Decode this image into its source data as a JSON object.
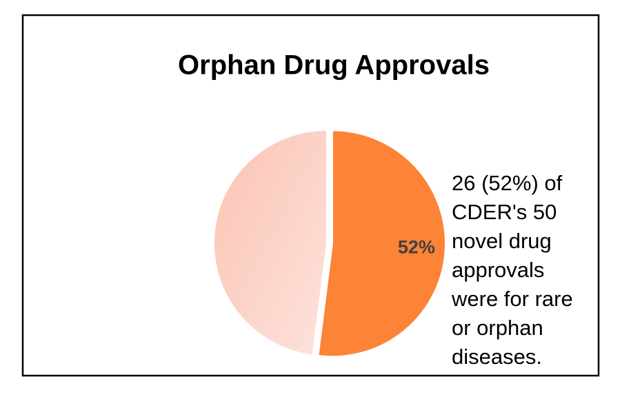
{
  "chart_data": {
    "type": "pie",
    "title": "Orphan Drug Approvals",
    "values": [
      52,
      48
    ],
    "value_labels": [
      "52%",
      null
    ],
    "colors": [
      "#fd8336",
      "#fccbbd"
    ],
    "annotation": [
      "26 (52%) of",
      "CDER's 50",
      "novel drug",
      "approvals",
      "were for rare",
      "or orphan",
      "diseases."
    ]
  }
}
